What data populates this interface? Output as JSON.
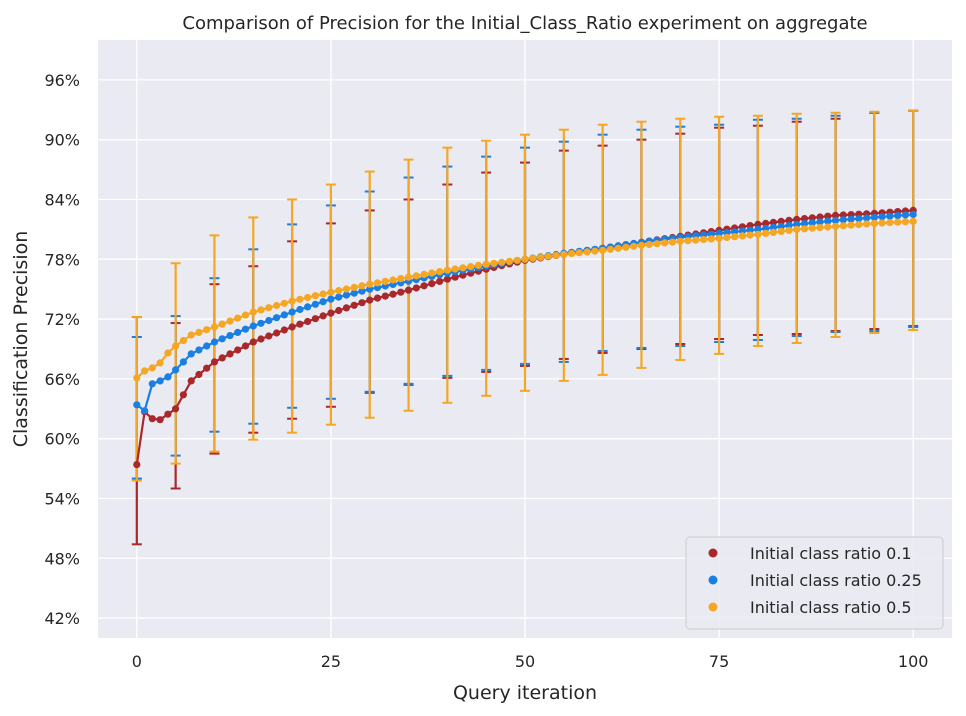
{
  "chart_data": {
    "type": "line",
    "title": "Comparison of Precision for the Initial_Class_Ratio experiment on aggregate",
    "xlabel": "Query iteration",
    "ylabel": "Classification Precision",
    "xlim": [
      -5,
      105
    ],
    "ylim": [
      0.4,
      1.0
    ],
    "xticks": [
      0,
      25,
      50,
      75,
      100
    ],
    "xtick_labels": [
      "0",
      "25",
      "50",
      "75",
      "100"
    ],
    "yticks": [
      0.42,
      0.48,
      0.54,
      0.6,
      0.66,
      0.72,
      0.78,
      0.84,
      0.9,
      0.96
    ],
    "ytick_labels": [
      "42%",
      "48%",
      "54%",
      "60%",
      "66%",
      "72%",
      "78%",
      "84%",
      "90%",
      "96%"
    ],
    "grid": true,
    "legend_position": "bottom-right",
    "series": [
      {
        "name": "Initial class ratio 0.1",
        "color": "#a8282b",
        "anchors_x": [
          0,
          1,
          2,
          3,
          5,
          7,
          10,
          15,
          20,
          25,
          30,
          35,
          40,
          45,
          50,
          55,
          60,
          65,
          70,
          75,
          80,
          85,
          90,
          95,
          100
        ],
        "anchors_y": [
          0.574,
          0.627,
          0.62,
          0.619,
          0.63,
          0.658,
          0.677,
          0.697,
          0.712,
          0.726,
          0.739,
          0.749,
          0.76,
          0.77,
          0.779,
          0.785,
          0.791,
          0.797,
          0.803,
          0.809,
          0.815,
          0.82,
          0.824,
          0.826,
          0.829
        ],
        "errorbars": [
          {
            "x": 0,
            "y": 0.574,
            "low": 0.494,
            "high": 0.722
          },
          {
            "x": 5,
            "y": 0.63,
            "low": 0.55,
            "high": 0.716
          },
          {
            "x": 10,
            "y": 0.677,
            "low": 0.585,
            "high": 0.755
          },
          {
            "x": 15,
            "y": 0.697,
            "low": 0.606,
            "high": 0.773
          },
          {
            "x": 20,
            "y": 0.712,
            "low": 0.62,
            "high": 0.798
          },
          {
            "x": 25,
            "y": 0.726,
            "low": 0.632,
            "high": 0.816
          },
          {
            "x": 30,
            "y": 0.739,
            "low": 0.646,
            "high": 0.829
          },
          {
            "x": 35,
            "y": 0.749,
            "low": 0.654,
            "high": 0.84
          },
          {
            "x": 40,
            "y": 0.76,
            "low": 0.661,
            "high": 0.855
          },
          {
            "x": 45,
            "y": 0.77,
            "low": 0.667,
            "high": 0.867
          },
          {
            "x": 50,
            "y": 0.779,
            "low": 0.673,
            "high": 0.877
          },
          {
            "x": 55,
            "y": 0.785,
            "low": 0.68,
            "high": 0.889
          },
          {
            "x": 60,
            "y": 0.791,
            "low": 0.686,
            "high": 0.894
          },
          {
            "x": 65,
            "y": 0.797,
            "low": 0.69,
            "high": 0.9
          },
          {
            "x": 70,
            "y": 0.803,
            "low": 0.695,
            "high": 0.906
          },
          {
            "x": 75,
            "y": 0.809,
            "low": 0.7,
            "high": 0.912
          },
          {
            "x": 80,
            "y": 0.815,
            "low": 0.704,
            "high": 0.914
          },
          {
            "x": 85,
            "y": 0.82,
            "low": 0.705,
            "high": 0.918
          },
          {
            "x": 90,
            "y": 0.824,
            "low": 0.708,
            "high": 0.921
          },
          {
            "x": 95,
            "y": 0.826,
            "low": 0.71,
            "high": 0.927
          },
          {
            "x": 100,
            "y": 0.829,
            "low": 0.713,
            "high": 0.929
          }
        ]
      },
      {
        "name": "Initial class ratio 0.25",
        "color": "#1a7fe3",
        "anchors_x": [
          0,
          1,
          2,
          3,
          4,
          5,
          7,
          10,
          15,
          20,
          25,
          30,
          35,
          40,
          45,
          50,
          55,
          60,
          65,
          70,
          75,
          80,
          85,
          90,
          95,
          100
        ],
        "anchors_y": [
          0.634,
          0.628,
          0.655,
          0.658,
          0.662,
          0.669,
          0.685,
          0.697,
          0.713,
          0.727,
          0.74,
          0.75,
          0.758,
          0.766,
          0.773,
          0.78,
          0.786,
          0.791,
          0.797,
          0.802,
          0.806,
          0.81,
          0.815,
          0.819,
          0.822,
          0.825
        ],
        "errorbars": [
          {
            "x": 0,
            "y": 0.634,
            "low": 0.56,
            "high": 0.702
          },
          {
            "x": 5,
            "y": 0.669,
            "low": 0.583,
            "high": 0.723
          },
          {
            "x": 10,
            "y": 0.697,
            "low": 0.607,
            "high": 0.761
          },
          {
            "x": 15,
            "y": 0.713,
            "low": 0.615,
            "high": 0.79
          },
          {
            "x": 20,
            "y": 0.727,
            "low": 0.631,
            "high": 0.815
          },
          {
            "x": 25,
            "y": 0.74,
            "low": 0.64,
            "high": 0.834
          },
          {
            "x": 30,
            "y": 0.75,
            "low": 0.647,
            "high": 0.848
          },
          {
            "x": 35,
            "y": 0.758,
            "low": 0.655,
            "high": 0.862
          },
          {
            "x": 40,
            "y": 0.766,
            "low": 0.663,
            "high": 0.873
          },
          {
            "x": 45,
            "y": 0.773,
            "low": 0.669,
            "high": 0.883
          },
          {
            "x": 50,
            "y": 0.78,
            "low": 0.675,
            "high": 0.892
          },
          {
            "x": 55,
            "y": 0.786,
            "low": 0.677,
            "high": 0.898
          },
          {
            "x": 60,
            "y": 0.791,
            "low": 0.688,
            "high": 0.905
          },
          {
            "x": 65,
            "y": 0.797,
            "low": 0.691,
            "high": 0.91
          },
          {
            "x": 70,
            "y": 0.802,
            "low": 0.693,
            "high": 0.913
          },
          {
            "x": 75,
            "y": 0.806,
            "low": 0.697,
            "high": 0.915
          },
          {
            "x": 80,
            "y": 0.81,
            "low": 0.699,
            "high": 0.92
          },
          {
            "x": 85,
            "y": 0.815,
            "low": 0.703,
            "high": 0.921
          },
          {
            "x": 90,
            "y": 0.819,
            "low": 0.707,
            "high": 0.924
          },
          {
            "x": 95,
            "y": 0.822,
            "low": 0.708,
            "high": 0.927
          },
          {
            "x": 100,
            "y": 0.825,
            "low": 0.712,
            "high": 0.929
          }
        ]
      },
      {
        "name": "Initial class ratio 0.5",
        "color": "#f5a623",
        "anchors_x": [
          0,
          1,
          2,
          3,
          4,
          5,
          7,
          10,
          15,
          20,
          25,
          30,
          35,
          40,
          45,
          50,
          55,
          60,
          65,
          70,
          75,
          80,
          85,
          90,
          95,
          100
        ],
        "anchors_y": [
          0.661,
          0.668,
          0.671,
          0.676,
          0.686,
          0.693,
          0.704,
          0.712,
          0.727,
          0.738,
          0.747,
          0.755,
          0.762,
          0.769,
          0.775,
          0.78,
          0.785,
          0.789,
          0.794,
          0.798,
          0.801,
          0.805,
          0.81,
          0.813,
          0.816,
          0.818
        ],
        "errorbars": [
          {
            "x": 0,
            "y": 0.661,
            "low": 0.558,
            "high": 0.722
          },
          {
            "x": 5,
            "y": 0.693,
            "low": 0.575,
            "high": 0.776
          },
          {
            "x": 10,
            "y": 0.712,
            "low": 0.587,
            "high": 0.804
          },
          {
            "x": 15,
            "y": 0.727,
            "low": 0.599,
            "high": 0.822
          },
          {
            "x": 20,
            "y": 0.738,
            "low": 0.606,
            "high": 0.84
          },
          {
            "x": 25,
            "y": 0.747,
            "low": 0.614,
            "high": 0.855
          },
          {
            "x": 30,
            "y": 0.755,
            "low": 0.621,
            "high": 0.868
          },
          {
            "x": 35,
            "y": 0.762,
            "low": 0.628,
            "high": 0.88
          },
          {
            "x": 40,
            "y": 0.769,
            "low": 0.636,
            "high": 0.892
          },
          {
            "x": 45,
            "y": 0.775,
            "low": 0.643,
            "high": 0.899
          },
          {
            "x": 50,
            "y": 0.78,
            "low": 0.648,
            "high": 0.905
          },
          {
            "x": 55,
            "y": 0.785,
            "low": 0.658,
            "high": 0.91
          },
          {
            "x": 60,
            "y": 0.789,
            "low": 0.664,
            "high": 0.915
          },
          {
            "x": 65,
            "y": 0.794,
            "low": 0.671,
            "high": 0.918
          },
          {
            "x": 70,
            "y": 0.798,
            "low": 0.679,
            "high": 0.921
          },
          {
            "x": 75,
            "y": 0.801,
            "low": 0.685,
            "high": 0.923
          },
          {
            "x": 80,
            "y": 0.805,
            "low": 0.693,
            "high": 0.924
          },
          {
            "x": 85,
            "y": 0.81,
            "low": 0.696,
            "high": 0.926
          },
          {
            "x": 90,
            "y": 0.813,
            "low": 0.702,
            "high": 0.927
          },
          {
            "x": 95,
            "y": 0.816,
            "low": 0.706,
            "high": 0.928
          },
          {
            "x": 100,
            "y": 0.818,
            "low": 0.709,
            "high": 0.929
          }
        ]
      }
    ]
  }
}
